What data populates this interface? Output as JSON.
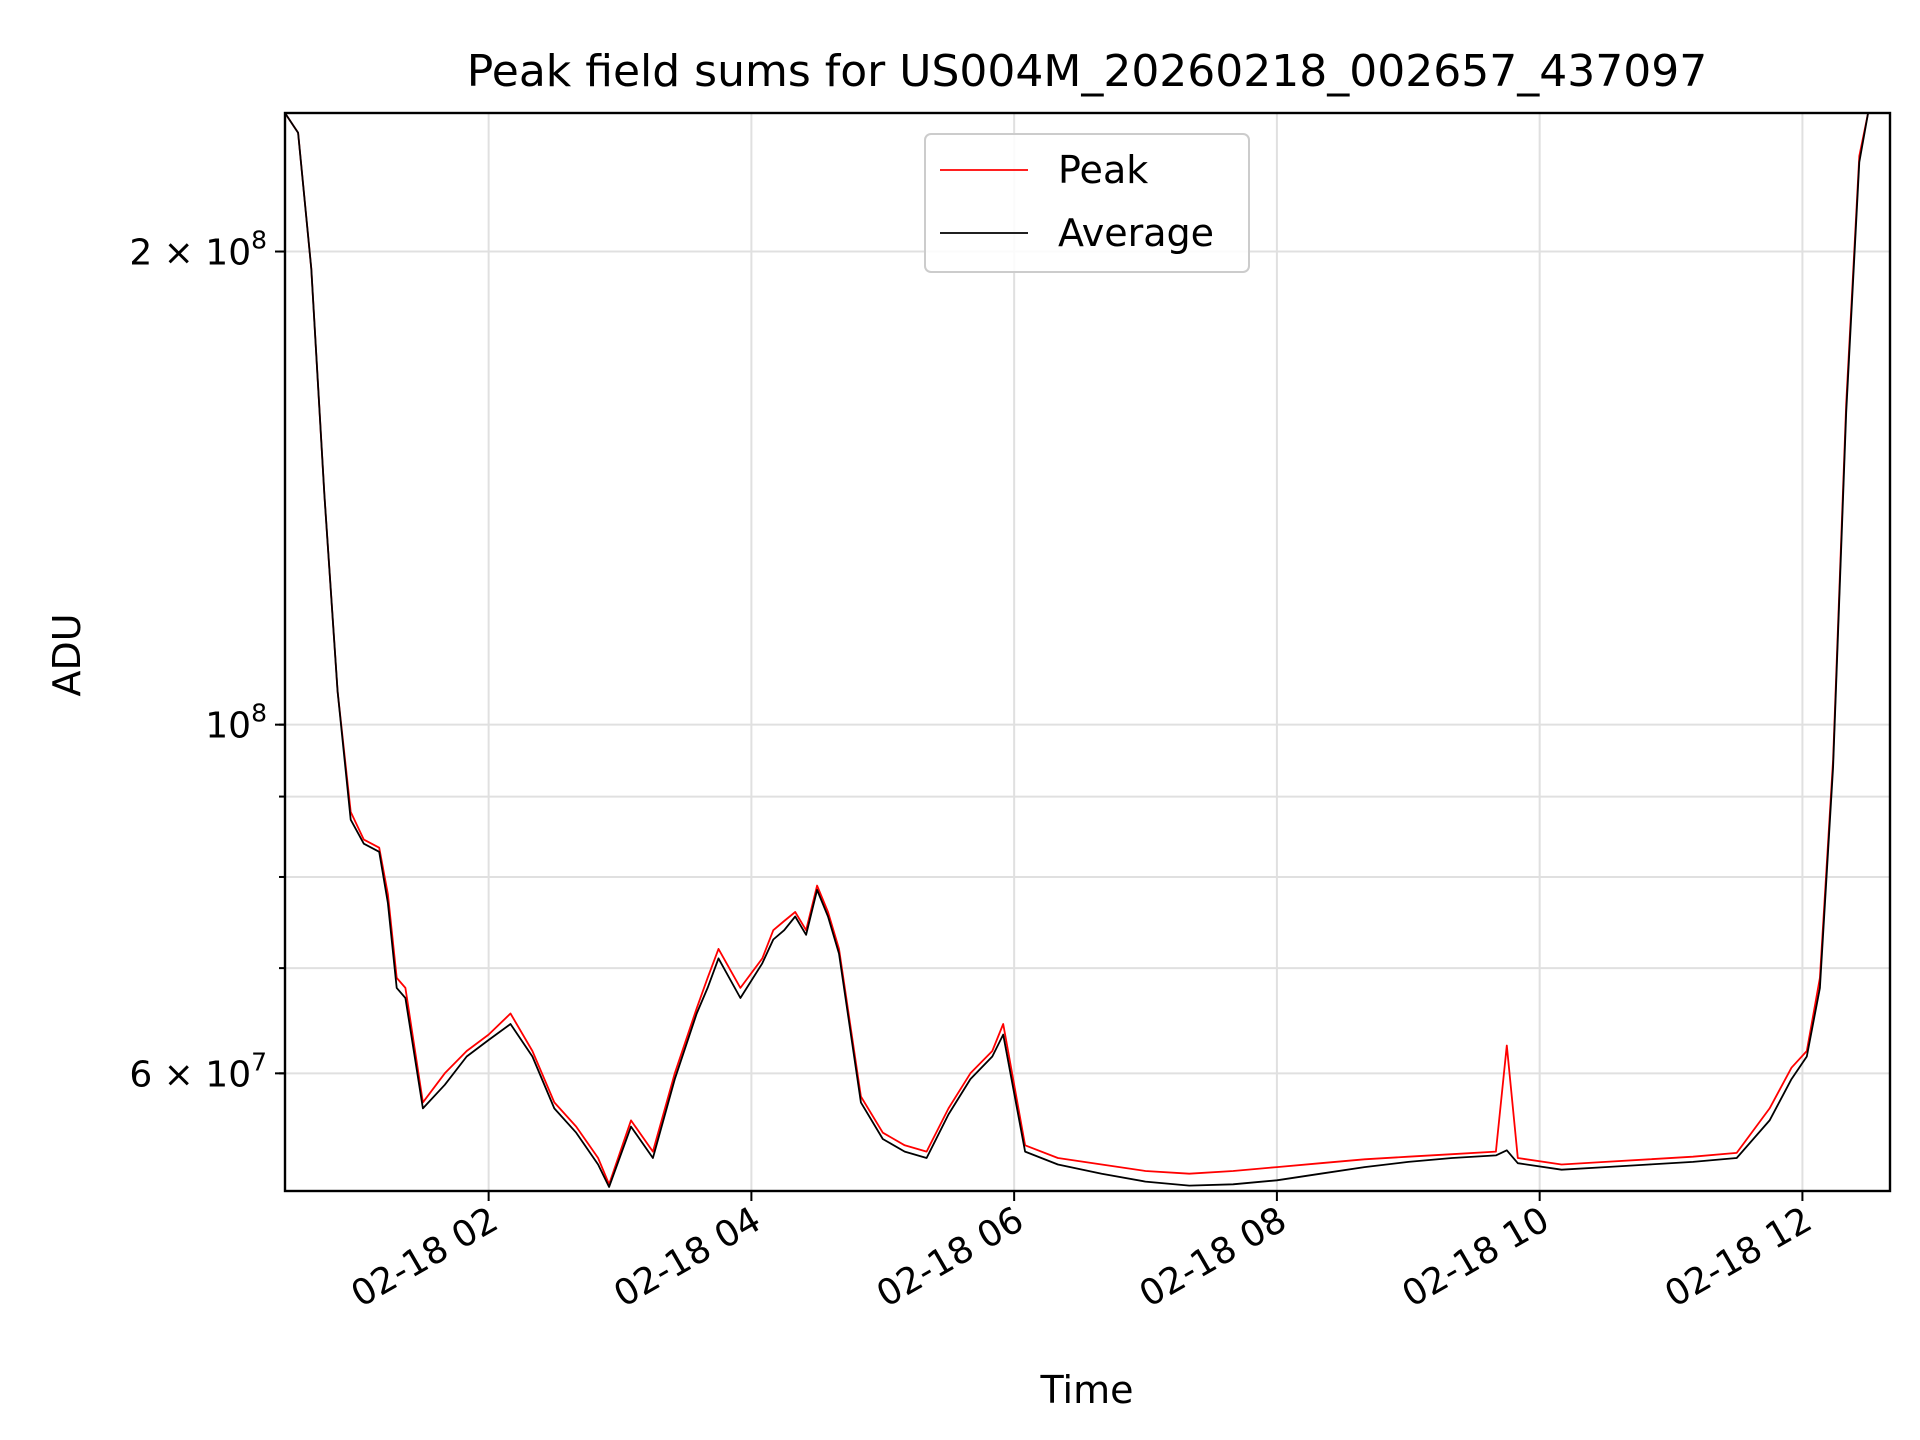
{
  "chart_data": {
    "type": "line",
    "title": "Peak field sums for US004M_20260218_002657_437097",
    "xlabel": "Time",
    "ylabel": "ADU",
    "xlim": [
      "02-18 00:27",
      "02-18 12:40"
    ],
    "ylim": [
      50500000,
      245000000
    ],
    "yscale": "log",
    "grid": true,
    "legend_position": "top-center",
    "x_tick_labels": [
      "02-18 02",
      "02-18 04",
      "02-18 06",
      "02-18 08",
      "02-18 10",
      "02-18 12"
    ],
    "y_tick_labels": [
      {
        "value": 200000000,
        "base": "2 × 10",
        "exp": "8"
      },
      {
        "value": 100000000,
        "base": "10",
        "exp": "8"
      },
      {
        "value": 60000000,
        "base": "6 × 10",
        "exp": "7"
      }
    ],
    "series": [
      {
        "name": "Peak",
        "color": "#ff0000",
        "x": [
          "02-18 00:27",
          "02-18 00:33",
          "02-18 00:39",
          "02-18 00:45",
          "02-18 00:51",
          "02-18 00:57",
          "02-18 01:03",
          "02-18 01:10",
          "02-18 01:14",
          "02-18 01:18",
          "02-18 01:22",
          "02-18 01:30",
          "02-18 01:40",
          "02-18 01:50",
          "02-18 02:00",
          "02-18 02:10",
          "02-18 02:20",
          "02-18 02:30",
          "02-18 02:40",
          "02-18 02:50",
          "02-18 02:55",
          "02-18 03:05",
          "02-18 03:15",
          "02-18 03:25",
          "02-18 03:35",
          "02-18 03:40",
          "02-18 03:45",
          "02-18 03:55",
          "02-18 04:05",
          "02-18 04:10",
          "02-18 04:15",
          "02-18 04:20",
          "02-18 04:25",
          "02-18 04:30",
          "02-18 04:35",
          "02-18 04:40",
          "02-18 04:50",
          "02-18 05:00",
          "02-18 05:10",
          "02-18 05:20",
          "02-18 05:30",
          "02-18 05:40",
          "02-18 05:50",
          "02-18 05:55",
          "02-18 06:05",
          "02-18 06:20",
          "02-18 06:40",
          "02-18 07:00",
          "02-18 07:20",
          "02-18 07:40",
          "02-18 08:00",
          "02-18 08:20",
          "02-18 08:40",
          "02-18 09:00",
          "02-18 09:20",
          "02-18 09:40",
          "02-18 09:45",
          "02-18 09:50",
          "02-18 10:10",
          "02-18 10:30",
          "02-18 10:50",
          "02-18 11:10",
          "02-18 11:30",
          "02-18 11:45",
          "02-18 11:55",
          "02-18 12:02",
          "02-18 12:08",
          "02-18 12:14",
          "02-18 12:20",
          "02-18 12:26",
          "02-18 12:30",
          "02-18 12:40"
        ],
        "values": [
          245000000,
          238000000,
          195000000,
          140000000,
          105000000,
          88000000,
          84500000,
          83500000,
          78000000,
          69000000,
          68000000,
          57500000,
          60000000,
          62000000,
          63500000,
          65500000,
          62000000,
          57500000,
          55500000,
          53000000,
          51000000,
          56000000,
          53500000,
          60000000,
          66000000,
          69000000,
          72000000,
          68000000,
          71000000,
          74000000,
          75000000,
          76000000,
          74000000,
          79000000,
          76000000,
          72000000,
          58000000,
          55000000,
          54000000,
          53500000,
          57000000,
          60000000,
          62000000,
          64500000,
          54000000,
          53000000,
          52500000,
          52000000,
          51800000,
          52000000,
          52300000,
          52600000,
          52900000,
          53100000,
          53300000,
          53500000,
          62500000,
          53000000,
          52500000,
          52700000,
          52900000,
          53100000,
          53400000,
          57000000,
          60500000,
          62000000,
          69000000,
          95000000,
          160000000,
          230000000,
          245000000,
          245000000
        ]
      },
      {
        "name": "Average",
        "color": "#000000",
        "x": [
          "02-18 00:27",
          "02-18 00:33",
          "02-18 00:39",
          "02-18 00:45",
          "02-18 00:51",
          "02-18 00:57",
          "02-18 01:03",
          "02-18 01:10",
          "02-18 01:14",
          "02-18 01:18",
          "02-18 01:22",
          "02-18 01:30",
          "02-18 01:40",
          "02-18 01:50",
          "02-18 02:00",
          "02-18 02:10",
          "02-18 02:20",
          "02-18 02:30",
          "02-18 02:40",
          "02-18 02:50",
          "02-18 02:55",
          "02-18 03:05",
          "02-18 03:15",
          "02-18 03:25",
          "02-18 03:35",
          "02-18 03:40",
          "02-18 03:45",
          "02-18 03:55",
          "02-18 04:05",
          "02-18 04:10",
          "02-18 04:15",
          "02-18 04:20",
          "02-18 04:25",
          "02-18 04:30",
          "02-18 04:35",
          "02-18 04:40",
          "02-18 04:50",
          "02-18 05:00",
          "02-18 05:10",
          "02-18 05:20",
          "02-18 05:30",
          "02-18 05:40",
          "02-18 05:50",
          "02-18 05:55",
          "02-18 06:05",
          "02-18 06:20",
          "02-18 06:40",
          "02-18 07:00",
          "02-18 07:20",
          "02-18 07:40",
          "02-18 08:00",
          "02-18 08:20",
          "02-18 08:40",
          "02-18 09:00",
          "02-18 09:20",
          "02-18 09:40",
          "02-18 09:45",
          "02-18 09:50",
          "02-18 10:10",
          "02-18 10:30",
          "02-18 10:50",
          "02-18 11:10",
          "02-18 11:30",
          "02-18 11:45",
          "02-18 11:55",
          "02-18 12:02",
          "02-18 12:08",
          "02-18 12:14",
          "02-18 12:20",
          "02-18 12:26",
          "02-18 12:30",
          "02-18 12:40"
        ],
        "values": [
          245000000,
          238000000,
          195000000,
          140000000,
          105000000,
          87000000,
          84000000,
          83000000,
          77000000,
          68000000,
          67000000,
          57000000,
          59000000,
          61500000,
          63000000,
          64500000,
          61500000,
          57000000,
          55000000,
          52500000,
          50800000,
          55500000,
          53000000,
          59500000,
          65500000,
          68000000,
          71000000,
          67000000,
          70500000,
          73000000,
          74000000,
          75500000,
          73500000,
          78500000,
          75500000,
          71500000,
          57500000,
          54500000,
          53500000,
          53000000,
          56500000,
          59500000,
          61500000,
          63500000,
          53500000,
          52500000,
          51800000,
          51200000,
          50900000,
          51000000,
          51300000,
          51800000,
          52300000,
          52700000,
          53000000,
          53200000,
          53600000,
          52600000,
          52100000,
          52300000,
          52500000,
          52700000,
          53000000,
          56000000,
          59500000,
          61500000,
          68000000,
          94000000,
          158000000,
          228000000,
          245000000,
          245000000
        ]
      }
    ]
  }
}
